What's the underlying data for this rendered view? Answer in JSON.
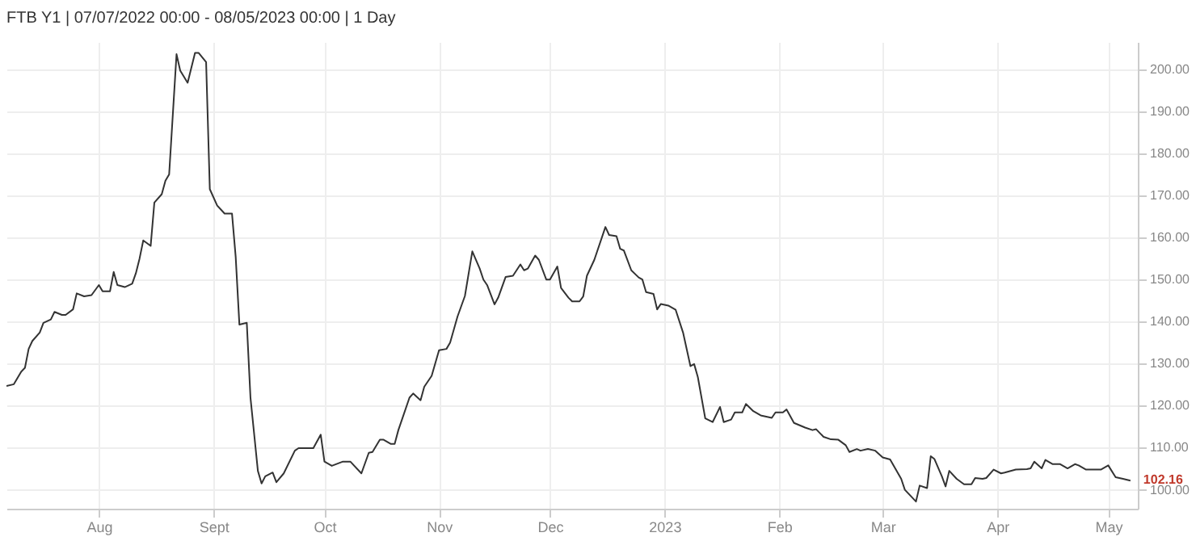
{
  "chart_data": {
    "type": "line",
    "title": "FTB Y1 | 07/07/2022 00:00 - 08/05/2023 00:00 | 1 Day",
    "x": [
      "2022-07-07",
      "2022-07-09",
      "2022-07-11",
      "2022-07-12",
      "2022-07-13",
      "2022-07-14",
      "2022-07-16",
      "2022-07-17",
      "2022-07-19",
      "2022-07-20",
      "2022-07-22",
      "2022-07-23",
      "2022-07-25",
      "2022-07-26",
      "2022-07-28",
      "2022-07-30",
      "2022-08-01",
      "2022-08-02",
      "2022-08-04",
      "2022-08-05",
      "2022-08-06",
      "2022-08-08",
      "2022-08-10",
      "2022-08-11",
      "2022-08-12",
      "2022-08-13",
      "2022-08-15",
      "2022-08-16",
      "2022-08-18",
      "2022-08-19",
      "2022-08-20",
      "2022-08-22",
      "2022-08-23",
      "2022-08-25",
      "2022-08-27",
      "2022-08-28",
      "2022-08-30",
      "2022-08-31",
      "2022-09-02",
      "2022-09-04",
      "2022-09-06",
      "2022-09-07",
      "2022-09-08",
      "2022-09-10",
      "2022-09-11",
      "2022-09-13",
      "2022-09-14",
      "2022-09-15",
      "2022-09-17",
      "2022-09-18",
      "2022-09-20",
      "2022-09-23",
      "2022-09-24",
      "2022-09-28",
      "2022-09-30",
      "2022-10-01",
      "2022-10-03",
      "2022-10-06",
      "2022-10-08",
      "2022-10-11",
      "2022-10-13",
      "2022-10-14",
      "2022-10-16",
      "2022-10-17",
      "2022-10-19",
      "2022-10-20",
      "2022-10-21",
      "2022-10-24",
      "2022-10-25",
      "2022-10-27",
      "2022-10-28",
      "2022-10-30",
      "2022-11-01",
      "2022-11-03",
      "2022-11-04",
      "2022-11-06",
      "2022-11-08",
      "2022-11-10",
      "2022-11-12",
      "2022-11-13",
      "2022-11-14",
      "2022-11-16",
      "2022-11-17",
      "2022-11-19",
      "2022-11-21",
      "2022-11-23",
      "2022-11-24",
      "2022-11-25",
      "2022-11-27",
      "2022-11-28",
      "2022-11-30",
      "2022-12-01",
      "2022-12-03",
      "2022-12-04",
      "2022-12-06",
      "2022-12-07",
      "2022-12-09",
      "2022-12-10",
      "2022-12-11",
      "2022-12-13",
      "2022-12-16",
      "2022-12-17",
      "2022-12-19",
      "2022-12-20",
      "2022-12-21",
      "2022-12-23",
      "2022-12-25",
      "2022-12-26",
      "2022-12-27",
      "2022-12-29",
      "2022-12-30",
      "2022-12-31",
      "2023-01-02",
      "2023-01-04",
      "2023-01-06",
      "2023-01-08",
      "2023-01-09",
      "2023-01-10",
      "2023-01-12",
      "2023-01-14",
      "2023-01-16",
      "2023-01-17",
      "2023-01-19",
      "2023-01-20",
      "2023-01-22",
      "2023-01-23",
      "2023-01-25",
      "2023-01-27",
      "2023-01-30",
      "2023-01-31",
      "2023-02-02",
      "2023-02-03",
      "2023-02-05",
      "2023-02-08",
      "2023-02-10",
      "2023-02-11",
      "2023-02-13",
      "2023-02-15",
      "2023-02-17",
      "2023-02-19",
      "2023-02-20",
      "2023-02-22",
      "2023-02-23",
      "2023-02-25",
      "2023-02-27",
      "2023-03-01",
      "2023-03-03",
      "2023-03-06",
      "2023-03-07",
      "2023-03-10",
      "2023-03-11",
      "2023-03-13",
      "2023-03-14",
      "2023-03-15",
      "2023-03-17",
      "2023-03-18",
      "2023-03-19",
      "2023-03-21",
      "2023-03-23",
      "2023-03-25",
      "2023-03-26",
      "2023-03-28",
      "2023-03-29",
      "2023-03-31",
      "2023-04-02",
      "2023-04-03",
      "2023-04-06",
      "2023-04-09",
      "2023-04-10",
      "2023-04-11",
      "2023-04-13",
      "2023-04-14",
      "2023-04-16",
      "2023-04-18",
      "2023-04-20",
      "2023-04-22",
      "2023-04-23",
      "2023-04-25",
      "2023-04-29",
      "2023-05-01",
      "2023-05-03",
      "2023-05-05",
      "2023-05-07"
    ],
    "series": [
      {
        "color": "#333333",
        "values": [
          124.7,
          125.1,
          128.1,
          129,
          133.5,
          135.4,
          137.4,
          139.7,
          140.5,
          142.3,
          141.6,
          141.6,
          142.9,
          146.7,
          146,
          146.3,
          148.7,
          147.2,
          147.2,
          151.8,
          148.7,
          148.2,
          149,
          151.5,
          155,
          159.3,
          158,
          168.3,
          170.3,
          173.5,
          175,
          203.6,
          199.7,
          196.8,
          203.9,
          203.9,
          201.7,
          171.5,
          167.6,
          165.7,
          165.7,
          155.4,
          139.3,
          139.7,
          121.9,
          104.5,
          101.5,
          103.2,
          104.1,
          101.8,
          103.9,
          109.3,
          109.9,
          109.9,
          113.1,
          106.7,
          105.7,
          106.7,
          106.7,
          103.9,
          108.8,
          109,
          111.9,
          111.9,
          110.9,
          110.9,
          114.2,
          121.9,
          122.9,
          121.3,
          124.5,
          127.1,
          133.2,
          133.5,
          135,
          141.2,
          146.1,
          156.7,
          152.6,
          150,
          148.7,
          144.1,
          145.7,
          150.6,
          150.9,
          153.6,
          152.2,
          152.6,
          155.7,
          154.7,
          150,
          150,
          153.1,
          148,
          145.7,
          144.8,
          144.8,
          146,
          150.9,
          154.7,
          162.5,
          160.6,
          160.3,
          157.3,
          156.9,
          152.2,
          150.5,
          150,
          147,
          146.6,
          142.9,
          144.2,
          143.8,
          142.8,
          137.4,
          129.4,
          129.9,
          126.8,
          117,
          116.1,
          119.7,
          116.1,
          116.7,
          118.4,
          118.4,
          120.4,
          118.7,
          117.7,
          117.1,
          118.4,
          118.4,
          119.1,
          115.9,
          114.8,
          114.2,
          114.4,
          112.6,
          112,
          111.9,
          110.6,
          109,
          109.7,
          109.3,
          109.7,
          109.3,
          107.7,
          107.2,
          102.6,
          100,
          97.2,
          101,
          100.4,
          108,
          107.3,
          103.2,
          100.8,
          104.5,
          102.6,
          101.3,
          101.3,
          102.8,
          102.6,
          102.8,
          104.8,
          103.9,
          104.1,
          104.8,
          104.9,
          105.1,
          106.7,
          105.1,
          107.1,
          106.1,
          106.1,
          105.1,
          106.1,
          105.8,
          104.8,
          104.8,
          105.8,
          103,
          102.6,
          102.16
        ]
      }
    ],
    "xlim": [
      "2022-07-07",
      "2023-05-09"
    ],
    "xticks": [
      {
        "value": "2022-08-01",
        "label": "Aug"
      },
      {
        "value": "2022-09-01",
        "label": "Sept"
      },
      {
        "value": "2022-10-01",
        "label": "Oct"
      },
      {
        "value": "2022-11-01",
        "label": "Nov"
      },
      {
        "value": "2022-12-01",
        "label": "Dec"
      },
      {
        "value": "2023-01-01",
        "label": "2023"
      },
      {
        "value": "2023-02-01",
        "label": "Feb"
      },
      {
        "value": "2023-03-01",
        "label": "Mar"
      },
      {
        "value": "2023-04-01",
        "label": "Apr"
      },
      {
        "value": "2023-05-01",
        "label": "May"
      }
    ],
    "ylim": [
      95.5,
      206.5
    ],
    "yticks": [
      {
        "value": 100,
        "label": "100.00"
      },
      {
        "value": 110,
        "label": "110.00"
      },
      {
        "value": 120,
        "label": "120.00"
      },
      {
        "value": 130,
        "label": "130.00"
      },
      {
        "value": 140,
        "label": "140.00"
      },
      {
        "value": 150,
        "label": "150.00"
      },
      {
        "value": 160,
        "label": "160.00"
      },
      {
        "value": 170,
        "label": "170.00"
      },
      {
        "value": 180,
        "label": "180.00"
      },
      {
        "value": 190,
        "label": "190.00"
      },
      {
        "value": 200,
        "label": "200.00"
      }
    ],
    "grid": true,
    "marker": "none",
    "line_style": "solid",
    "annotations": [
      {
        "text": "102.16",
        "x": "2023-05-07",
        "y": 102.16
      }
    ]
  }
}
